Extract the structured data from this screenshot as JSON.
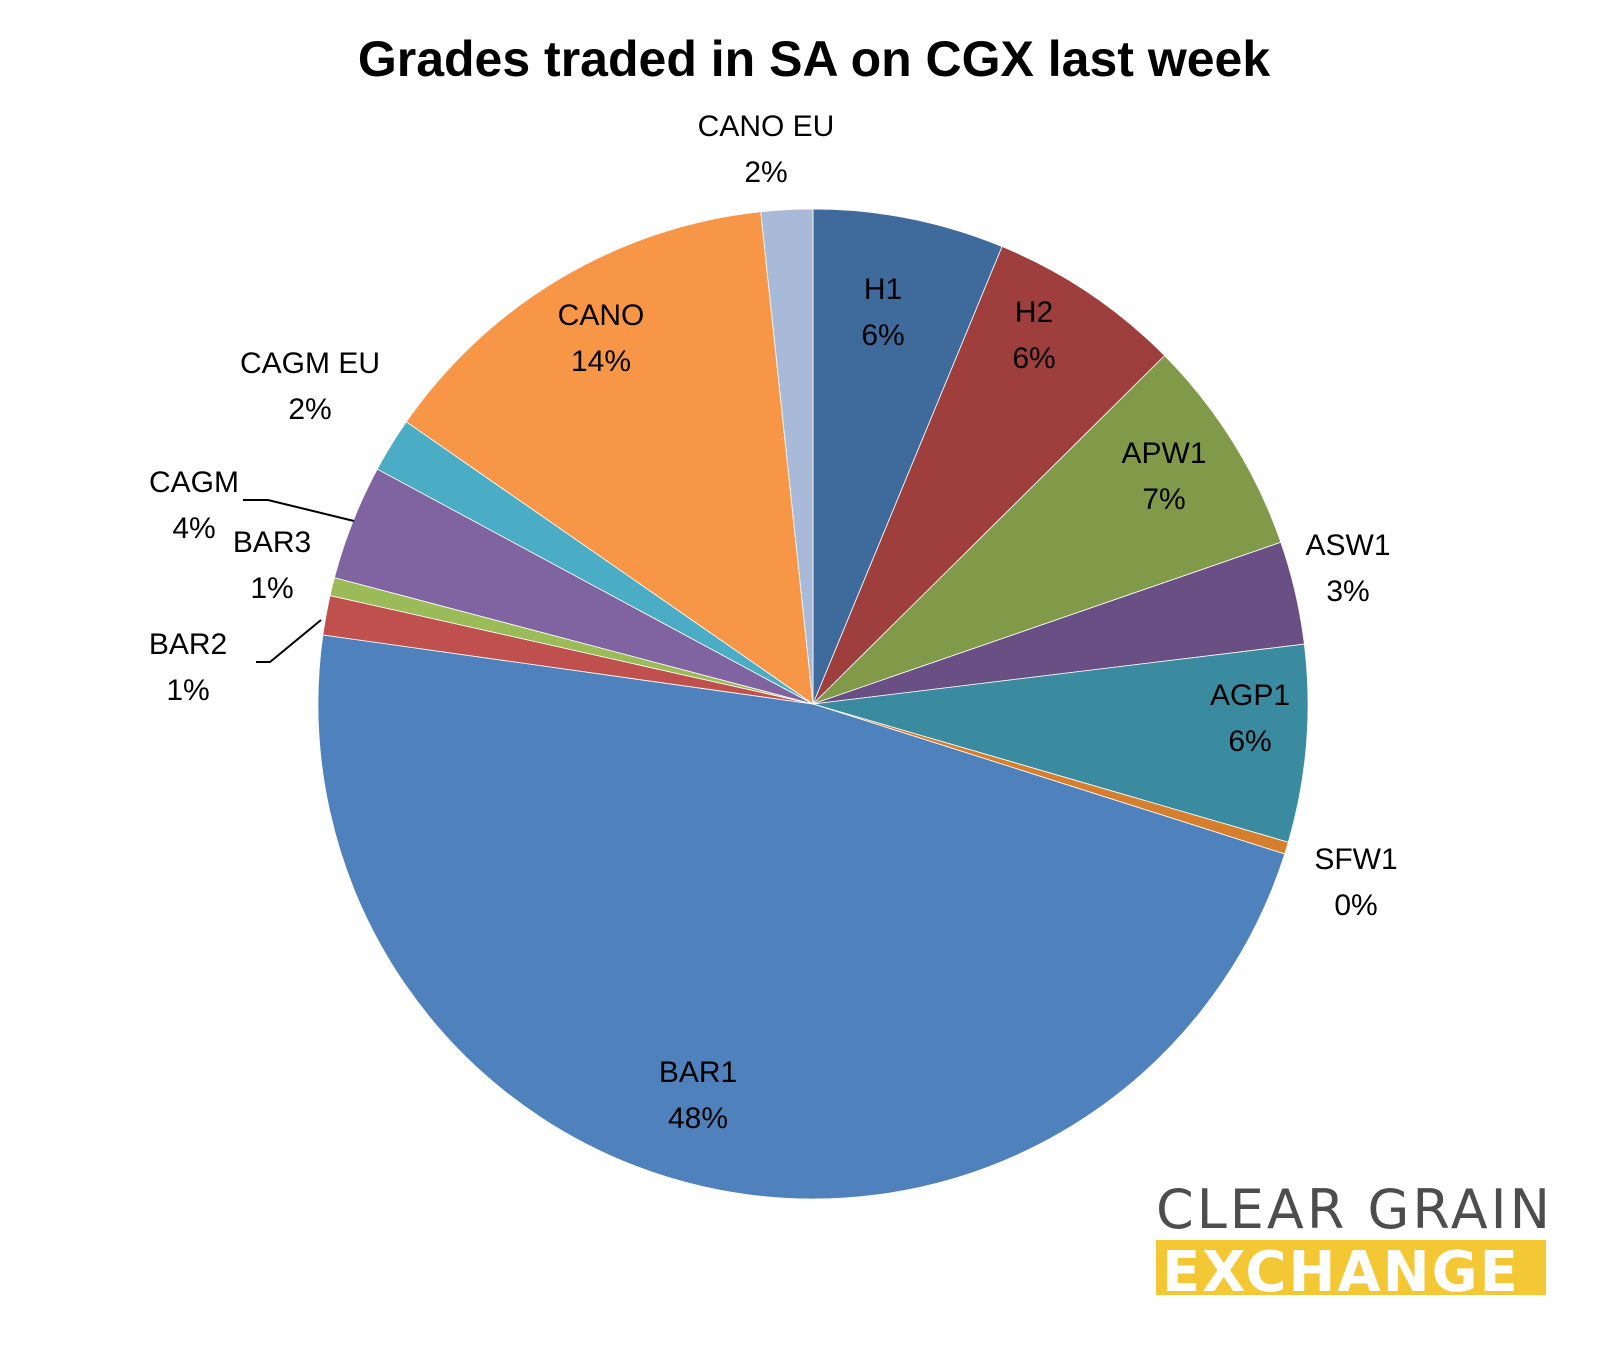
{
  "chart_data": {
    "type": "pie",
    "title": "Grades traded in SA on CGX last week",
    "slices": [
      {
        "label": "H1",
        "value": 6.3,
        "pct": "6%",
        "color": "#3f6a9c"
      },
      {
        "label": "H2",
        "value": 6.4,
        "pct": "6%",
        "color": "#9e3f3e"
      },
      {
        "label": "APW1",
        "value": 7.2,
        "pct": "7%",
        "color": "#809a49"
      },
      {
        "label": "ASW1",
        "value": 3.4,
        "pct": "3%",
        "color": "#6a4f85"
      },
      {
        "label": "AGP1",
        "value": 6.5,
        "pct": "6%",
        "color": "#3b8ba0"
      },
      {
        "label": "SFW1",
        "value": 0.4,
        "pct": "0%",
        "color": "#d57e2e"
      },
      {
        "label": "BAR1",
        "value": 47.8,
        "pct": "48%",
        "color": "#4f81bd"
      },
      {
        "label": "BAR2",
        "value": 1.3,
        "pct": "1%",
        "color": "#c0504d"
      },
      {
        "label": "BAR3",
        "value": 0.6,
        "pct": "1%",
        "color": "#9bbb59"
      },
      {
        "label": "CAGM",
        "value": 3.8,
        "pct": "4%",
        "color": "#8064a2"
      },
      {
        "label": "CAGM EU",
        "value": 1.8,
        "pct": "2%",
        "color": "#4bacc6"
      },
      {
        "label": "CANO",
        "value": 13.8,
        "pct": "14%",
        "color": "#f79646"
      },
      {
        "label": "CANO EU",
        "value": 1.7,
        "pct": "2%",
        "color": "#a9bad8"
      }
    ]
  },
  "logo": {
    "line1": "CLEAR GRAIN",
    "line2": "EXCHANGE",
    "accent_color": "#f3c834",
    "text_color": "#4d4d4d"
  }
}
